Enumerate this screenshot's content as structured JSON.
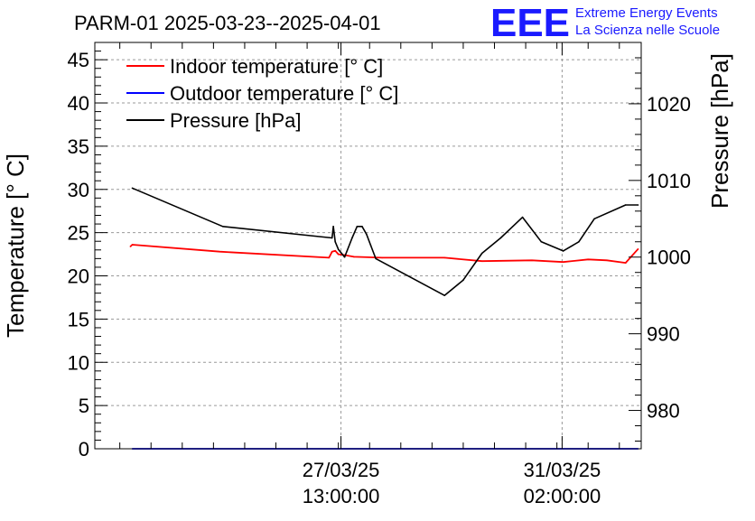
{
  "chart_data": {
    "type": "line",
    "title": "PARM-01 2025-03-23--2025-04-01",
    "logo_text": "EEE",
    "logo_line1": "Extreme Energy Events",
    "logo_line2": "La Scienza nelle Scuole",
    "ylabel_left": "Temperature [° C]",
    "ylabel_right": "Pressure [hPa]",
    "x_unit": "days since 2025-03-23 00:00",
    "xlim": [
      0.6,
      9.35
    ],
    "ylim_left": [
      0,
      47
    ],
    "ylim_right": [
      975,
      1028
    ],
    "x_ticks": [
      {
        "x": 4.5417,
        "date": "27/03/25",
        "time": "13:00:00"
      },
      {
        "x": 8.0833,
        "date": "31/03/25",
        "time": "02:00:00"
      }
    ],
    "left_ticks": [
      {
        "v": 0,
        "label": "0"
      },
      {
        "v": 5,
        "label": "5"
      },
      {
        "v": 10,
        "label": "10"
      },
      {
        "v": 15,
        "label": "15"
      },
      {
        "v": 20,
        "label": "20"
      },
      {
        "v": 25,
        "label": "25"
      },
      {
        "v": 30,
        "label": "30"
      },
      {
        "v": 35,
        "label": "35"
      },
      {
        "v": 40,
        "label": "40"
      },
      {
        "v": 45,
        "label": "45"
      }
    ],
    "right_ticks": [
      {
        "v": 980,
        "label": "980"
      },
      {
        "v": 990,
        "label": "990"
      },
      {
        "v": 1000,
        "label": "1000"
      },
      {
        "v": 1010,
        "label": "1010"
      },
      {
        "v": 1020,
        "label": "1020"
      }
    ],
    "legend": [
      {
        "label": "Indoor temperature [° C]",
        "color": "#ff0000"
      },
      {
        "label": "Outdoor temperature [° C]",
        "color": "#0000ff"
      },
      {
        "label": "Pressure [hPa]",
        "color": "#000000"
      }
    ],
    "series": [
      {
        "name": "Indoor temperature [° C]",
        "axis": "left",
        "color": "#ff0000",
        "x": [
          1.17,
          1.2,
          2.6,
          4.35,
          4.4,
          4.45,
          4.5,
          4.6,
          4.75,
          5.2,
          6.2,
          6.8,
          7.6,
          8.1,
          8.5,
          8.8,
          9.1,
          9.3
        ],
        "y": [
          23.4,
          23.6,
          22.8,
          22.1,
          22.8,
          22.9,
          22.5,
          22.4,
          22.2,
          22.1,
          22.1,
          21.7,
          21.8,
          21.6,
          21.9,
          21.8,
          21.5,
          23.1
        ]
      },
      {
        "name": "Outdoor temperature [° C]",
        "axis": "left",
        "color": "#0000ff",
        "x": [
          1.2,
          9.3
        ],
        "y": [
          0,
          0
        ]
      },
      {
        "name": "Pressure [hPa]",
        "axis": "right",
        "color": "#000000",
        "x": [
          1.2,
          2.65,
          4.4,
          4.42,
          4.45,
          4.5,
          4.6,
          4.72,
          4.8,
          4.88,
          4.95,
          5.02,
          5.1,
          6.2,
          6.5,
          6.8,
          7.1,
          7.45,
          7.75,
          8.1,
          8.35,
          8.6,
          9.1,
          9.3
        ],
        "y": [
          1009,
          1004,
          1002.5,
          1004,
          1002,
          1001,
          1000,
          1002.5,
          1004,
          1004,
          1003,
          1001.5,
          999.8,
          995,
          997,
          1000.5,
          1002.5,
          1005.2,
          1002,
          1000.8,
          1002,
          1005,
          1006.8,
          1006.8
        ]
      }
    ]
  }
}
